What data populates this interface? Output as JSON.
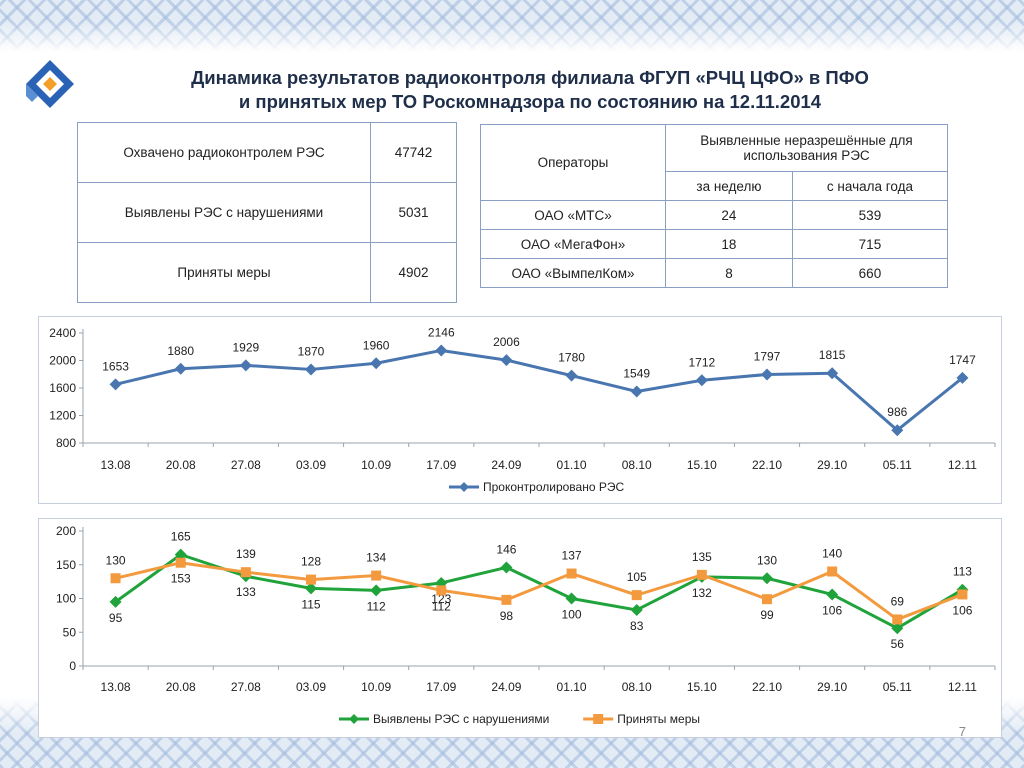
{
  "title": {
    "line1": "Динамика результатов радиоконтроля филиала ФГУП «РЧЦ ЦФО» в ПФО",
    "line2": "и принятых мер ТО Роскомнадзора по состоянию на 12.11.2014"
  },
  "summary_table": {
    "rows": [
      {
        "label": "Охвачено радиоконтролем РЭС",
        "value": "47742"
      },
      {
        "label": "Выявлены РЭС с нарушениями",
        "value": "5031"
      },
      {
        "label": "Приняты меры",
        "value": "4902"
      }
    ]
  },
  "operators_table": {
    "col_operators": "Операторы",
    "col_group": "Выявленные неразрешённые для использования РЭС",
    "col_week": "за неделю",
    "col_year": "с начала года",
    "rows": [
      {
        "name": "ОАО «МТС»",
        "week": "24",
        "year": "539"
      },
      {
        "name": "ОАО «МегаФон»",
        "week": "18",
        "year": "715"
      },
      {
        "name": "ОАО «ВымпелКом»",
        "week": "8",
        "year": "660"
      }
    ]
  },
  "chart_data": [
    {
      "type": "line",
      "categories": [
        "13.08",
        "20.08",
        "27.08",
        "03.09",
        "10.09",
        "17.09",
        "24.09",
        "01.10",
        "08.10",
        "15.10",
        "22.10",
        "29.10",
        "05.11",
        "12.11"
      ],
      "series": [
        {
          "name": "Проконтролировано РЭС",
          "color": "#4a76b0",
          "values": [
            1653,
            1880,
            1929,
            1870,
            1960,
            2146,
            2006,
            1780,
            1549,
            1712,
            1797,
            1815,
            986,
            1747
          ]
        }
      ],
      "ylim": [
        800,
        2400
      ],
      "yticks": [
        800,
        1200,
        1600,
        2000,
        2400
      ],
      "legend": "bottom",
      "grid": false
    },
    {
      "type": "line",
      "categories": [
        "13.08",
        "20.08",
        "27.08",
        "03.09",
        "10.09",
        "17.09",
        "24.09",
        "01.10",
        "08.10",
        "15.10",
        "22.10",
        "29.10",
        "05.11",
        "12.11"
      ],
      "series": [
        {
          "name": "Выявлены РЭС с нарушениями",
          "color": "#1fa33a",
          "values": [
            95,
            165,
            133,
            115,
            112,
            123,
            146,
            100,
            83,
            132,
            130,
            106,
            56,
            113
          ]
        },
        {
          "name": "Приняты меры",
          "color": "#f39a3e",
          "values": [
            130,
            153,
            139,
            128,
            134,
            112,
            98,
            137,
            105,
            135,
            99,
            140,
            69,
            106
          ]
        }
      ],
      "ylim": [
        0,
        200
      ],
      "yticks": [
        0,
        50,
        100,
        150,
        200
      ],
      "legend": "bottom",
      "grid": false
    }
  ],
  "page_number": "7"
}
